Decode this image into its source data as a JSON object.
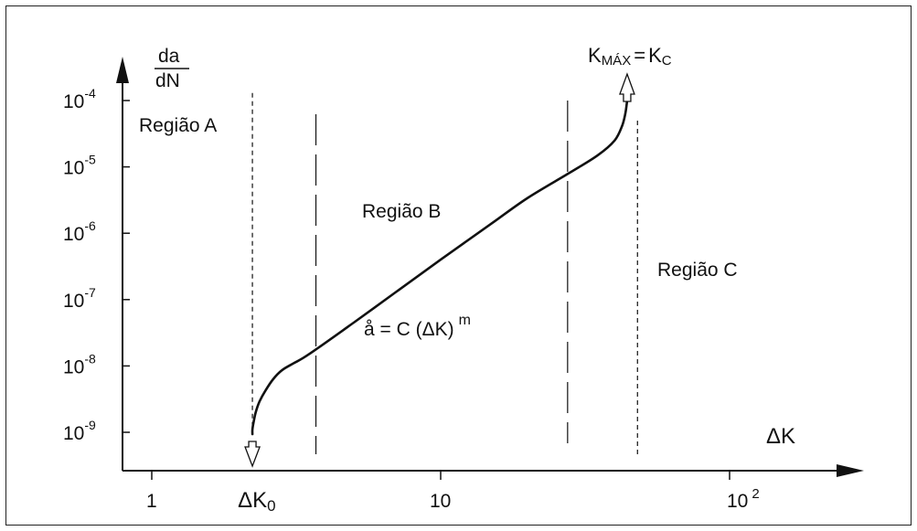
{
  "chart_data": {
    "type": "line",
    "title": "",
    "xlabel": "ΔK",
    "ylabel": {
      "numerator": "da",
      "denominator": "dN"
    },
    "x_scale": "log",
    "y_scale": "log",
    "xlim": [
      0.7,
      200
    ],
    "ylim": [
      2e-10,
      0.00021
    ],
    "x_ticks": [
      {
        "value": 1,
        "label": "1"
      },
      {
        "value": 10,
        "label": "10"
      },
      {
        "value": 100,
        "label": "10",
        "sup": "2"
      }
    ],
    "y_ticks": [
      {
        "value": 0.0001,
        "base": "10",
        "exp": "-4"
      },
      {
        "value": 1e-05,
        "base": "10",
        "exp": "-5"
      },
      {
        "value": 1e-06,
        "base": "10",
        "exp": "-6"
      },
      {
        "value": 1e-07,
        "base": "10",
        "exp": "-7"
      },
      {
        "value": 1e-08,
        "base": "10",
        "exp": "-8"
      },
      {
        "value": 1e-09,
        "base": "10",
        "exp": "-9"
      }
    ],
    "grid": false,
    "series": [
      {
        "points": [
          [
            2.23,
            1.1e-09
          ],
          [
            2.25,
            1.4e-09
          ],
          [
            2.29,
            2e-09
          ],
          [
            2.36,
            2.9e-09
          ],
          [
            2.47,
            4.2e-09
          ],
          [
            2.63,
            6.3e-09
          ],
          [
            2.82,
            8.6e-09
          ],
          [
            3.1,
            1.1e-08
          ],
          [
            3.5,
            1.5e-08
          ],
          [
            5,
            4.5e-08
          ],
          [
            7,
            1.3e-07
          ],
          [
            10,
            4e-07
          ],
          [
            15,
            1.4e-06
          ],
          [
            20,
            3.4e-06
          ],
          [
            28,
            8.2e-06
          ],
          [
            35,
            1.5e-05
          ],
          [
            40,
            2.5e-05
          ],
          [
            42.5,
            4.2e-05
          ],
          [
            43.6,
            6.5e-05
          ],
          [
            44.2,
            0.0001
          ]
        ]
      }
    ],
    "threshold_marker": {
      "x": 2.23,
      "y_top": 0.00013,
      "label_base": "ΔK",
      "label_sub": "0"
    },
    "critical_marker": {
      "x": 48,
      "label_left": "K",
      "label_left_sub": "MÁX",
      "label_eq": "=",
      "label_right": "K",
      "label_right_sub": "C"
    },
    "region_boundaries": [
      3.7,
      27.5
    ],
    "region_labels": {
      "a": "Região A",
      "b": "Região B",
      "c": "Região C"
    },
    "equation": {
      "text": "å = C (",
      "delta": "ΔK",
      "close": ")",
      "exp": "m"
    }
  }
}
